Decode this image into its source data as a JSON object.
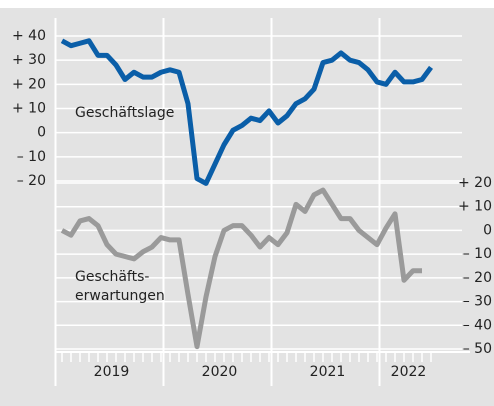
{
  "chart_data": {
    "type": "line",
    "year_labels": [
      "2019",
      "2020",
      "2021",
      "2022"
    ],
    "series": [
      {
        "name": "Geschäftslage",
        "color": "#0a5ea8",
        "axis": "y",
        "values": [
          38,
          36,
          37,
          38,
          32,
          32,
          28,
          22,
          25,
          23,
          23,
          25,
          26,
          25,
          12,
          -19,
          -21,
          -13,
          -5,
          1,
          3,
          6,
          5,
          9,
          4,
          7,
          12,
          14,
          18,
          29,
          30,
          33,
          30,
          29,
          26,
          21,
          20,
          25,
          21,
          21,
          22,
          27
        ]
      },
      {
        "name": "Geschäftserwartungen",
        "label_lines": [
          "Geschäfts-",
          "erwartungen"
        ],
        "color": "#9a9a9a",
        "axis": "y2",
        "values": [
          0,
          -2,
          4,
          5,
          2,
          -6,
          -10,
          -11,
          -12,
          -9,
          -7,
          -3,
          -4,
          -4,
          -27,
          -49,
          -28,
          -11,
          0,
          2,
          2,
          -2,
          -7,
          -3,
          -6,
          -1,
          11,
          8,
          15,
          17,
          11,
          5,
          5,
          0,
          -3,
          -6,
          1,
          7,
          -21,
          -17,
          -17,
          null
        ]
      }
    ],
    "ylim": [
      -20,
      40
    ],
    "yticks": [
      {
        "value": 40,
        "label": "+ 40"
      },
      {
        "value": 30,
        "label": "+ 30"
      },
      {
        "value": 20,
        "label": "+ 20"
      },
      {
        "value": 10,
        "label": "+ 10"
      },
      0,
      {
        "value": -10,
        "label": "– 10"
      },
      {
        "value": -20,
        "label": "– 20"
      }
    ],
    "y2lim": [
      -50,
      20
    ],
    "y2ticks": [
      {
        "value": 20,
        "label": "+ 20"
      },
      {
        "value": 10,
        "label": "+ 10"
      },
      0,
      {
        "value": -10,
        "label": "– 10"
      },
      {
        "value": -20,
        "label": "– 20"
      },
      {
        "value": -30,
        "label": "– 30"
      },
      {
        "value": -40,
        "label": "– 40"
      },
      {
        "value": -50,
        "label": "– 50"
      }
    ],
    "grid": true
  }
}
